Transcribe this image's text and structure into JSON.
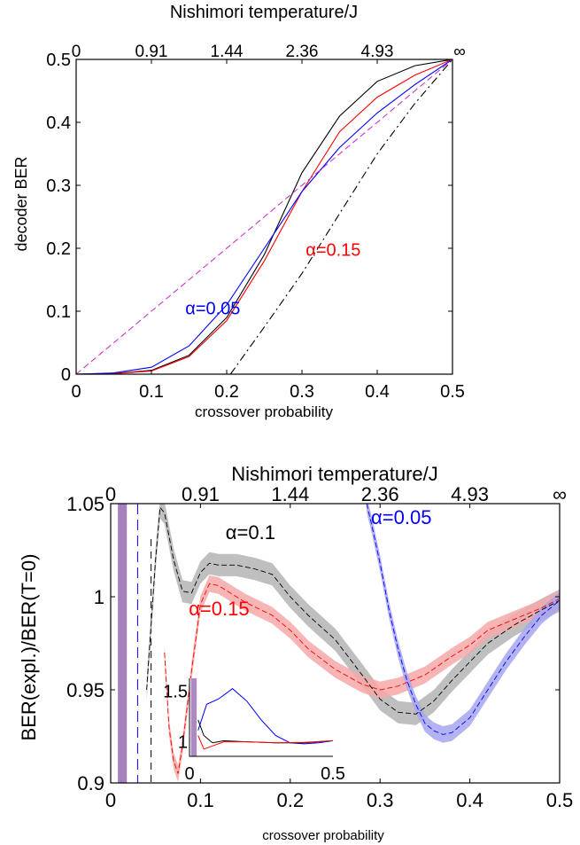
{
  "chart_data": [
    {
      "type": "line",
      "top_axis_label": "Nishimori temperature/J",
      "top_ticks": [
        "0",
        "0.91",
        "1.44",
        "2.36",
        "4.93",
        "∞"
      ],
      "top_tick_positions": [
        0,
        0.1,
        0.2,
        0.3,
        0.4,
        0.5
      ],
      "xlabel": "crossover probability",
      "ylabel": "decoder BER",
      "xlim": [
        0,
        0.5
      ],
      "ylim": [
        0,
        0.5
      ],
      "x_ticks": [
        "0",
        "0.1",
        "0.2",
        "0.3",
        "0.4",
        "0.5"
      ],
      "y_ticks": [
        "0",
        "0.1",
        "0.2",
        "0.3",
        "0.4",
        "0.5"
      ],
      "annotations": [
        {
          "text": "α=0.05",
          "color": "#0000ff",
          "x": 0.145,
          "y": 0.095
        },
        {
          "text": "α=0.15",
          "color": "#ff0000",
          "x": 0.305,
          "y": 0.188
        }
      ],
      "series": [
        {
          "color": "#000000",
          "style": "solid",
          "x": [
            0,
            0.05,
            0.1,
            0.15,
            0.2,
            0.25,
            0.3,
            0.35,
            0.4,
            0.45,
            0.5
          ],
          "y": [
            0,
            0.001,
            0.006,
            0.03,
            0.09,
            0.19,
            0.32,
            0.41,
            0.465,
            0.49,
            0.5
          ]
        },
        {
          "color": "#ff0000",
          "style": "solid",
          "x": [
            0,
            0.05,
            0.1,
            0.15,
            0.2,
            0.25,
            0.3,
            0.35,
            0.4,
            0.45,
            0.5
          ],
          "y": [
            0,
            0.001,
            0.005,
            0.028,
            0.085,
            0.18,
            0.29,
            0.385,
            0.44,
            0.475,
            0.5
          ]
        },
        {
          "color": "#0000ff",
          "style": "solid",
          "x": [
            0,
            0.05,
            0.1,
            0.15,
            0.2,
            0.25,
            0.3,
            0.35,
            0.4,
            0.45,
            0.5
          ],
          "y": [
            0,
            0.002,
            0.011,
            0.045,
            0.11,
            0.2,
            0.29,
            0.36,
            0.415,
            0.46,
            0.5
          ]
        },
        {
          "color": "#cc33cc",
          "style": "dashed",
          "x": [
            0,
            0.5
          ],
          "y": [
            0,
            0.5
          ]
        },
        {
          "color": "#000000",
          "style": "dashdot",
          "x": [
            0.205,
            0.25,
            0.3,
            0.35,
            0.4,
            0.45,
            0.5
          ],
          "y": [
            0,
            0.075,
            0.16,
            0.255,
            0.35,
            0.43,
            0.5
          ]
        }
      ]
    },
    {
      "type": "line",
      "top_axis_label": "Nishimori temperature/J",
      "top_ticks": [
        "0",
        "0.91",
        "1.44",
        "2.36",
        "4.93",
        "∞"
      ],
      "top_tick_positions": [
        0,
        0.1,
        0.2,
        0.3,
        0.4,
        0.5
      ],
      "xlabel": "crossover probability",
      "ylabel": "BER(expl.)/BER(T=0)",
      "xlim": [
        0,
        0.5
      ],
      "ylim": [
        0.9,
        1.05
      ],
      "x_ticks": [
        "0",
        "0.1",
        "0.2",
        "0.3",
        "0.4",
        "0.5"
      ],
      "y_ticks": [
        "0.9",
        "0.95",
        "1",
        "1.05"
      ],
      "y_tick_values": [
        0.9,
        0.95,
        1.0,
        1.05
      ],
      "annotations": [
        {
          "text": "α=0.1",
          "color": "#000000",
          "x": 0.128,
          "y": 1.031
        },
        {
          "text": "α=0.15",
          "color": "#ff0000",
          "x": 0.087,
          "y": 0.99
        },
        {
          "text": "α=0.05",
          "color": "#0000ff",
          "x": 0.29,
          "y": 1.039
        }
      ],
      "series": [
        {
          "color": "#000000",
          "band": "#b4b4b4",
          "band_width": 0.006,
          "x": [
            0.04,
            0.05,
            0.055,
            0.06,
            0.07,
            0.08,
            0.09,
            0.1,
            0.11,
            0.12,
            0.14,
            0.16,
            0.18,
            0.2,
            0.22,
            0.25,
            0.28,
            0.3,
            0.32,
            0.34,
            0.36,
            0.38,
            0.4,
            0.42,
            0.45,
            0.48,
            0.5
          ],
          "y": [
            0.95,
            1.02,
            1.048,
            1.045,
            1.02,
            1.003,
            1.002,
            1.013,
            1.018,
            1.017,
            1.017,
            1.015,
            1.012,
            1.0,
            0.99,
            0.977,
            0.958,
            0.945,
            0.938,
            0.937,
            0.944,
            0.955,
            0.965,
            0.975,
            0.985,
            0.993,
            0.998
          ]
        },
        {
          "color": "#ff0000",
          "band": "#f6a8a8",
          "band_width": 0.0045,
          "x": [
            0.06,
            0.065,
            0.07,
            0.075,
            0.08,
            0.09,
            0.1,
            0.11,
            0.12,
            0.13,
            0.15,
            0.18,
            0.2,
            0.22,
            0.25,
            0.28,
            0.3,
            0.32,
            0.35,
            0.38,
            0.4,
            0.42,
            0.45,
            0.48,
            0.5
          ],
          "y": [
            0.97,
            0.93,
            0.912,
            0.905,
            0.92,
            0.96,
            0.996,
            1.007,
            1.006,
            1.003,
            0.997,
            0.99,
            0.982,
            0.972,
            0.961,
            0.953,
            0.95,
            0.952,
            0.958,
            0.968,
            0.974,
            0.982,
            0.988,
            0.994,
            0.999
          ]
        },
        {
          "color": "#0000ff",
          "band": "#a6a6f0",
          "band_width": 0.0045,
          "x": [
            0.285,
            0.29,
            0.3,
            0.31,
            0.32,
            0.33,
            0.34,
            0.35,
            0.36,
            0.37,
            0.38,
            0.4,
            0.42,
            0.44,
            0.46,
            0.48,
            0.5
          ],
          "y": [
            1.05,
            1.04,
            1.018,
            0.993,
            0.972,
            0.955,
            0.942,
            0.932,
            0.928,
            0.926,
            0.927,
            0.935,
            0.95,
            0.965,
            0.978,
            0.99,
            0.998
          ]
        }
      ],
      "left_band": {
        "color": "#8a56a8",
        "x_range": [
          0.008,
          0.018
        ]
      },
      "inset": {
        "x_ticks": [
          "0",
          "0.5"
        ],
        "y_ticks": [
          "1",
          "1.5"
        ],
        "xlim": [
          0,
          0.5
        ],
        "ylim": [
          0.85,
          1.6
        ],
        "series": [
          {
            "color": "#0000ff",
            "x": [
              0.03,
              0.06,
              0.1,
              0.15,
              0.2,
              0.25,
              0.3,
              0.35,
              0.4,
              0.45,
              0.5
            ],
            "y": [
              1.1,
              1.35,
              1.4,
              1.5,
              1.38,
              1.2,
              1.05,
              0.98,
              0.97,
              0.98,
              1.0
            ]
          },
          {
            "color": "#000000",
            "x": [
              0.03,
              0.05,
              0.08,
              0.12,
              0.2,
              0.3,
              0.4,
              0.5
            ],
            "y": [
              1.2,
              1.05,
              0.98,
              1.0,
              0.99,
              0.98,
              0.98,
              1.0
            ]
          },
          {
            "color": "#ff0000",
            "x": [
              0.03,
              0.05,
              0.08,
              0.12,
              0.2,
              0.3,
              0.4,
              0.5
            ],
            "y": [
              1.05,
              0.92,
              0.95,
              0.99,
              0.99,
              0.98,
              0.985,
              1.0
            ]
          }
        ]
      }
    }
  ]
}
